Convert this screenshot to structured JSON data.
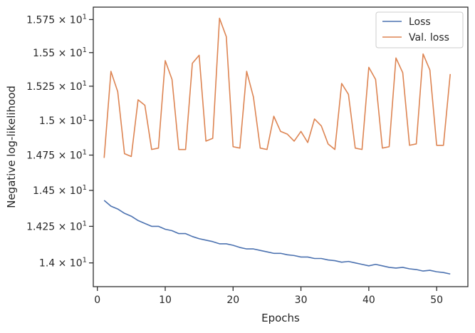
{
  "chart_data": {
    "type": "line",
    "title": "",
    "xlabel": "Epochs",
    "ylabel": "Negative log-likelihood",
    "yscale": "log",
    "xlim": [
      -0.6,
      54.6
    ],
    "ylim": [
      13.84,
      15.845
    ],
    "grid": false,
    "legend_position": "top-right",
    "x_ticks": [
      {
        "value": 0,
        "label": "0"
      },
      {
        "value": 10,
        "label": "10"
      },
      {
        "value": 20,
        "label": "20"
      },
      {
        "value": 30,
        "label": "30"
      },
      {
        "value": 40,
        "label": "40"
      },
      {
        "value": 50,
        "label": "50"
      }
    ],
    "y_ticks": [
      {
        "value": 14.0,
        "mantissa": "1.4",
        "label": "1.4 × 10"
      },
      {
        "value": 14.25,
        "mantissa": "1.425",
        "label": "1.425 × 10"
      },
      {
        "value": 14.5,
        "mantissa": "1.45",
        "label": "1.45 × 10"
      },
      {
        "value": 14.75,
        "mantissa": "1.475",
        "label": "1.475 × 10"
      },
      {
        "value": 15.0,
        "mantissa": "1.5",
        "label": "1.5 × 10"
      },
      {
        "value": 15.25,
        "mantissa": "1.525",
        "label": "1.525 × 10"
      },
      {
        "value": 15.5,
        "mantissa": "1.55",
        "label": "1.55 × 10"
      },
      {
        "value": 15.75,
        "mantissa": "1.575",
        "label": "1.575 × 10"
      }
    ],
    "y_tick_exponent": "1",
    "x": [
      1,
      2,
      3,
      4,
      5,
      6,
      7,
      8,
      9,
      10,
      11,
      12,
      13,
      14,
      15,
      16,
      17,
      18,
      19,
      20,
      21,
      22,
      23,
      24,
      25,
      26,
      27,
      28,
      29,
      30,
      31,
      32,
      33,
      34,
      35,
      36,
      37,
      38,
      39,
      40,
      41,
      42,
      43,
      44,
      45,
      46,
      47,
      48,
      49,
      50,
      51,
      52
    ],
    "series": [
      {
        "name": "Loss",
        "color": "#4c72b0",
        "values": [
          14.43,
          14.39,
          14.37,
          14.34,
          14.32,
          14.29,
          14.27,
          14.25,
          14.25,
          14.23,
          14.22,
          14.2,
          14.2,
          14.18,
          14.165,
          14.155,
          14.145,
          14.13,
          14.13,
          14.12,
          14.105,
          14.095,
          14.095,
          14.085,
          14.075,
          14.065,
          14.065,
          14.055,
          14.05,
          14.04,
          14.04,
          14.03,
          14.03,
          14.02,
          14.015,
          14.005,
          14.01,
          14.0,
          13.99,
          13.98,
          13.99,
          13.98,
          13.97,
          13.965,
          13.97,
          13.96,
          13.955,
          13.945,
          13.95,
          13.94,
          13.935,
          13.925
        ]
      },
      {
        "name": "Val. loss",
        "color": "#dd8452",
        "values": [
          14.73,
          15.36,
          15.21,
          14.76,
          14.74,
          15.15,
          15.11,
          14.79,
          14.8,
          15.44,
          15.3,
          14.79,
          14.79,
          15.42,
          15.48,
          14.85,
          14.87,
          15.76,
          15.62,
          14.81,
          14.8,
          15.36,
          15.17,
          14.8,
          14.79,
          15.03,
          14.92,
          14.9,
          14.85,
          14.92,
          14.84,
          15.01,
          14.96,
          14.83,
          14.79,
          15.27,
          15.19,
          14.8,
          14.79,
          15.39,
          15.3,
          14.8,
          14.81,
          15.46,
          15.35,
          14.82,
          14.83,
          15.49,
          15.37,
          14.82,
          14.82,
          15.34
        ]
      }
    ]
  }
}
